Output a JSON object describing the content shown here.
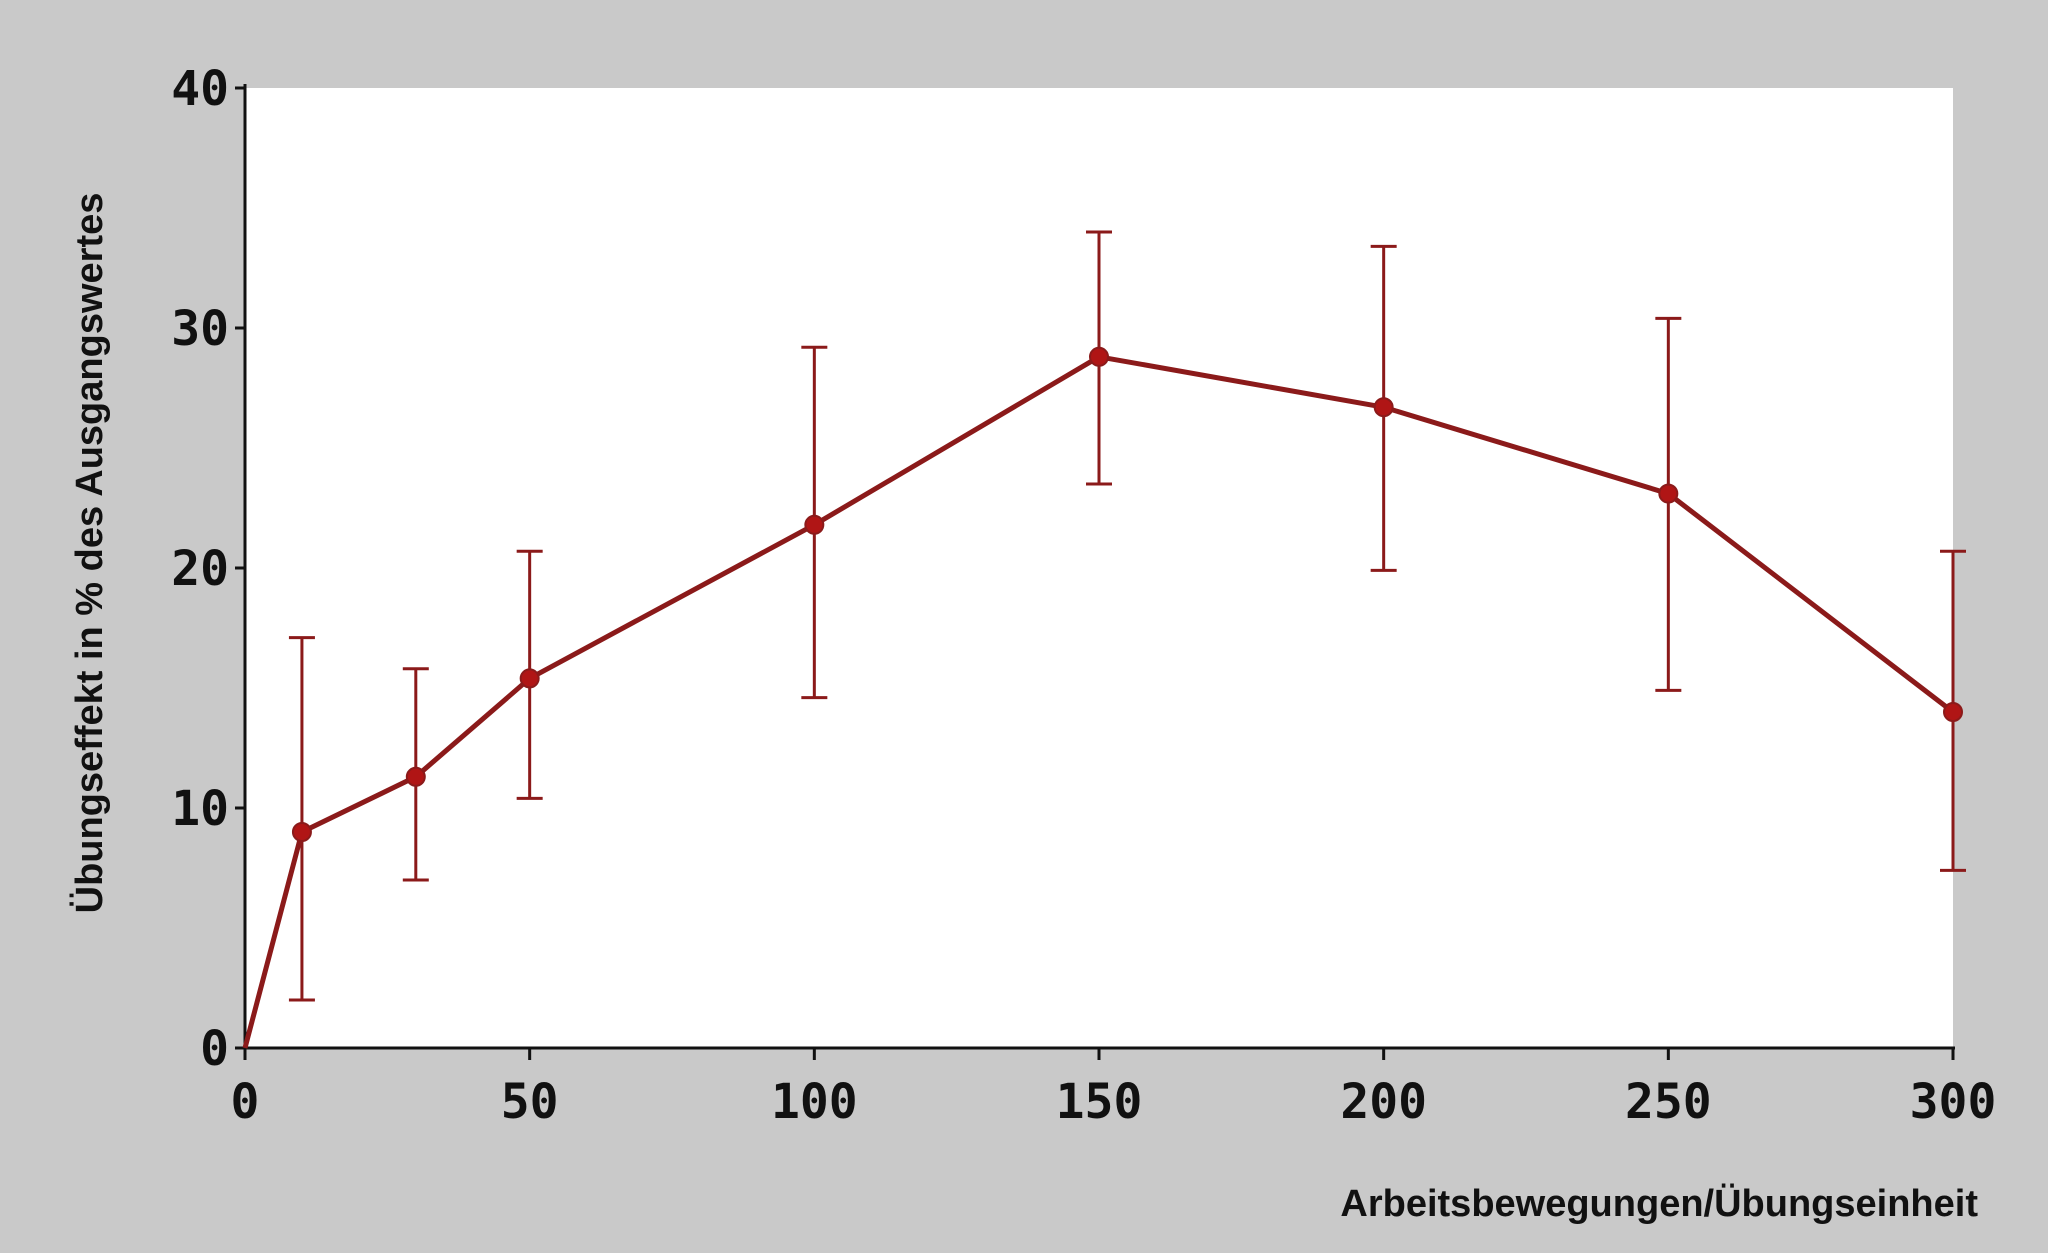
{
  "chart_data": {
    "type": "line",
    "title": "",
    "xlabel": "Arbeitsbewegungen/Übungseinheit",
    "ylabel": "Übungseffekt in % des Ausgangswertes",
    "xlim": [
      0,
      300
    ],
    "ylim": [
      0,
      40
    ],
    "x_ticks": [
      0,
      50,
      100,
      150,
      200,
      250,
      300
    ],
    "y_ticks": [
      0,
      10,
      20,
      30,
      40
    ],
    "grid": false,
    "legend": "none",
    "series": [
      {
        "x": [
          0,
          10,
          30,
          50,
          100,
          150,
          200,
          250,
          300
        ],
        "y": [
          0,
          9,
          11.3,
          15.4,
          21.8,
          28.8,
          26.7,
          23.1,
          14
        ],
        "error_low": [
          null,
          2,
          7,
          10.4,
          14.6,
          23.5,
          19.9,
          14.9,
          7.4
        ],
        "error_high": [
          null,
          17.1,
          15.8,
          20.7,
          29.2,
          34,
          33.4,
          30.4,
          20.7
        ],
        "color": "#8b1a1a"
      }
    ]
  },
  "colors": {
    "background": "#c9c9c9",
    "plot_area": "#ffffff",
    "axis": "#111111",
    "series": "#8b1a1a",
    "marker": "#b01515"
  }
}
